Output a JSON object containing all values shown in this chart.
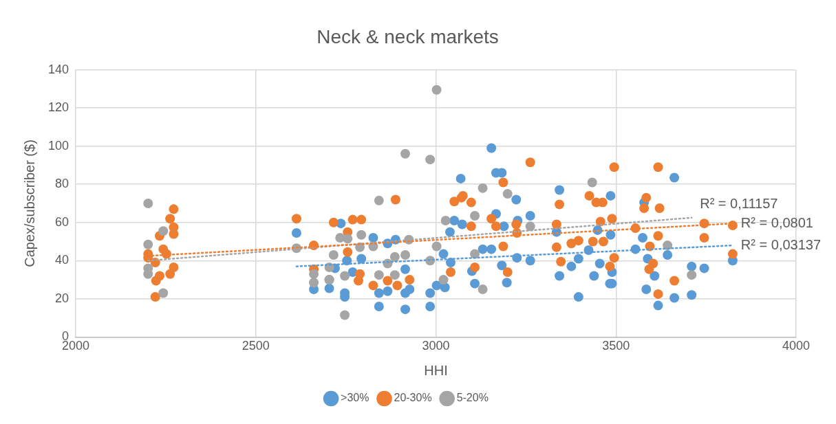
{
  "chart_data": {
    "type": "scatter",
    "title": "Neck & neck markets",
    "xlabel": "HHI",
    "ylabel": "Capex/subscriber ($)",
    "xlim": [
      2000,
      4000
    ],
    "xticks": [
      2000,
      2500,
      3000,
      3500,
      4000
    ],
    "ylim": [
      0,
      140
    ],
    "yticks": [
      0,
      20,
      40,
      60,
      80,
      100,
      120,
      140
    ],
    "grid": true,
    "legend": "bottom",
    "series": [
      {
        "name": ">30%",
        "color": "#5b9bd5",
        "marker": "circle",
        "x": [
          2613,
          2661,
          2704,
          2704,
          2736,
          2720,
          2753,
          2747,
          2747,
          2769,
          2793,
          2826,
          2842,
          2842,
          2866,
          2866,
          2888,
          2915,
          2915,
          2915,
          2927,
          2984,
          2984,
          3002,
          3021,
          3041,
          3069,
          3051,
          3039,
          3025,
          3073,
          3154,
          3167,
          3183,
          3167,
          3189,
          3223,
          3227,
          3262,
          3262,
          3130,
          3154,
          3100,
          3108,
          3183,
          3197,
          3225,
          3343,
          3343,
          3335,
          3376,
          3396,
          3396,
          3424,
          3449,
          3439,
          3455,
          3483,
          3485,
          3485,
          3489,
          3489,
          3554,
          3578,
          3574,
          3588,
          3584,
          3607,
          3617,
          3643,
          3662,
          3662,
          3710,
          3710,
          3745,
          3824
        ],
        "values": [
          54.5,
          25,
          25.5,
          30,
          59.5,
          36,
          40,
          23,
          21,
          34,
          41,
          52,
          23,
          16,
          49,
          24,
          51,
          35.5,
          23,
          14.5,
          25,
          16,
          23,
          27,
          43.5,
          39,
          83,
          61,
          55,
          26,
          59,
          99,
          86,
          86,
          64.5,
          58,
          72,
          61,
          63.5,
          40,
          46,
          46,
          34.5,
          28,
          37.5,
          28.5,
          41.5,
          77,
          32,
          55,
          37,
          41,
          21,
          45.5,
          56,
          32,
          38.5,
          28,
          74,
          53.5,
          34,
          28,
          46,
          70.5,
          52,
          41,
          25,
          32,
          16.5,
          43,
          83.5,
          20.5,
          37,
          22,
          36,
          40
        ]
      },
      {
        "name": "20-30%",
        "color": "#ed7d31",
        "marker": "circle",
        "x": [
          2201,
          2201,
          2221,
          2223,
          2233,
          2233,
          2243,
          2252,
          2262,
          2272,
          2262,
          2272,
          2272,
          2272,
          2221,
          2613,
          2661,
          2661,
          2716,
          2755,
          2769,
          2793,
          2755,
          2789,
          2785,
          2826,
          2866,
          2888,
          2893,
          2927,
          3041,
          3051,
          3071,
          3075,
          3098,
          3098,
          3108,
          3154,
          3167,
          3187,
          3187,
          3199,
          3223,
          3225,
          3262,
          3335,
          3343,
          3335,
          3347,
          3376,
          3396,
          3426,
          3445,
          3463,
          3436,
          3465,
          3483,
          3457,
          3495,
          3489,
          3495,
          3554,
          3578,
          3584,
          3621,
          3617,
          3617,
          3594,
          3603,
          3592,
          3617,
          3662,
          3745,
          3745,
          3824,
          3824
        ],
        "values": [
          43.5,
          41.5,
          21,
          29.5,
          32,
          53,
          46,
          43.5,
          33,
          36.5,
          62,
          57.5,
          54,
          67,
          39,
          62,
          48,
          35.5,
          60,
          55,
          61.5,
          61.5,
          44.5,
          33,
          29.5,
          27,
          29.5,
          72,
          27,
          30,
          34,
          71,
          73,
          74,
          70.5,
          58,
          36.5,
          62,
          58,
          81,
          47.5,
          34,
          59,
          54.5,
          91.5,
          59,
          69.5,
          47,
          39.5,
          49,
          50.5,
          74,
          70.5,
          70.5,
          50,
          50,
          37,
          60.5,
          89,
          62,
          41.5,
          57,
          67.5,
          73,
          67.5,
          89,
          53,
          47.5,
          38.5,
          35.5,
          22.5,
          29.5,
          59.5,
          52,
          58.5,
          43.5
        ]
      },
      {
        "name": "5-20%",
        "color": "#a5a5a5",
        "marker": "circle",
        "x": [
          2201,
          2201,
          2201,
          2201,
          2243,
          2243,
          2613,
          2661,
          2661,
          2704,
          2704,
          2716,
          2734,
          2755,
          2747,
          2747,
          2789,
          2793,
          2826,
          2842,
          2842,
          2866,
          2886,
          2886,
          2915,
          2915,
          2925,
          2984,
          3002,
          3002,
          2984,
          3027,
          3021,
          3108,
          3108,
          3130,
          3130,
          3199,
          3262,
          3434,
          3643,
          3710
        ],
        "values": [
          70,
          48.5,
          36,
          33,
          55.5,
          23,
          46.5,
          33,
          28.5,
          36.5,
          30,
          43,
          52,
          51.5,
          32,
          11.5,
          47,
          53.5,
          47.5,
          71.5,
          32.5,
          38.5,
          42,
          32.5,
          96,
          43,
          51,
          93,
          129.5,
          47.5,
          40,
          61,
          30,
          63.5,
          43.5,
          78,
          25,
          75,
          58,
          81,
          48,
          32.5
        ]
      },
      {
        "type": "line",
        "color": "#5b9bd5",
        "line_style": "dotted",
        "x": [
          2613,
          3824
        ],
        "values": [
          37,
          48
        ]
      },
      {
        "type": "line",
        "color": "#ed7d31",
        "line_style": "dotted",
        "x": [
          2201,
          3824
        ],
        "values": [
          42.5,
          59.5
        ]
      },
      {
        "type": "line",
        "color": "#a5a5a5",
        "line_style": "dotted",
        "x": [
          2201,
          3710
        ],
        "values": [
          40,
          62.5
        ]
      }
    ],
    "annotations": [
      "R² = 0,03137",
      "R² = 0,0801",
      "R² = 0,11157"
    ]
  }
}
